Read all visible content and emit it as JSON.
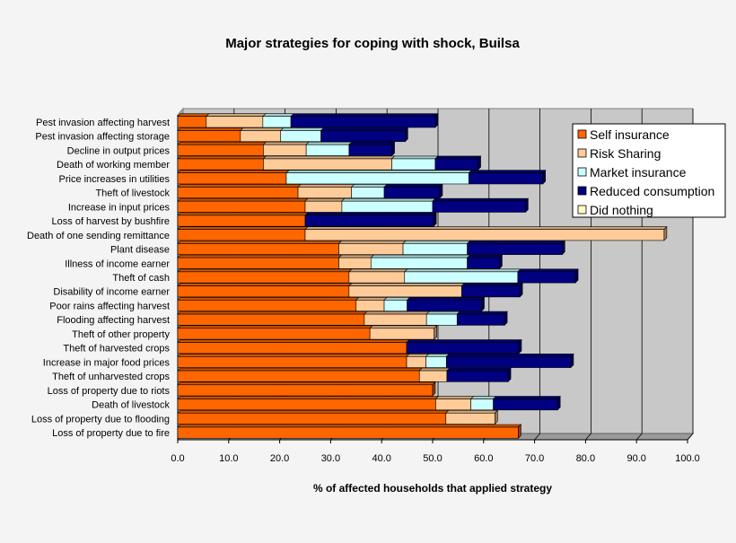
{
  "chart_data": {
    "type": "bar",
    "orientation": "horizontal",
    "stacked": true,
    "title": "Major strategies for coping with shock, Builsa",
    "xlabel": "% of affected households that applied strategy",
    "ylabel": "",
    "xlim": [
      0,
      100
    ],
    "xticks": [
      "0.0",
      "10.0",
      "20.0",
      "30.0",
      "40.0",
      "50.0",
      "60.0",
      "70.0",
      "80.0",
      "90.0",
      "100.0"
    ],
    "grid": true,
    "legend_position": "top-right",
    "categories": [
      "Pest invasion affecting harvest",
      "Pest invasion affecting storage",
      "Decline in output prices",
      "Death of working member",
      "Price increases in utilities",
      "Theft of livestock",
      "Increase in input prices",
      "Loss of harvest by bushfire",
      "Death of one sending remittance",
      "Plant disease",
      "Illness of income earner",
      "Theft of cash",
      "Disability of income earner",
      "Poor rains affecting harvest",
      "Flooding affecting harvest",
      "Theft of other property",
      "Theft of harvested crops",
      "Increase in major food prices",
      "Theft of unharvested crops",
      "Loss of property due to riots",
      "Death of livestock",
      "Loss of property due to flooding",
      "Loss of property due to fire"
    ],
    "series": [
      {
        "name": "Self insurance",
        "color": "#ff6600",
        "values": [
          5.6,
          12.3,
          16.8,
          16.8,
          21.3,
          23.6,
          25.0,
          25.0,
          25.0,
          31.6,
          31.6,
          33.6,
          33.6,
          35.0,
          36.6,
          37.7,
          44.9,
          44.9,
          47.4,
          50.0,
          50.6,
          52.6,
          66.8
        ]
      },
      {
        "name": "Risk Sharing",
        "color": "#ffcc99",
        "values": [
          11.1,
          7.9,
          8.4,
          25.2,
          0.0,
          10.5,
          7.2,
          0.0,
          70.4,
          12.6,
          6.3,
          10.9,
          22.1,
          5.5,
          12.2,
          12.6,
          0.0,
          3.8,
          5.4,
          0.0,
          6.9,
          9.6,
          0.0
        ]
      },
      {
        "name": "Market insurance",
        "color": "#ccffff",
        "values": [
          5.5,
          7.9,
          8.4,
          8.5,
          35.8,
          6.4,
          17.8,
          0.0,
          0.0,
          12.6,
          18.9,
          22.2,
          0.0,
          4.5,
          6.0,
          0.0,
          0.0,
          4.0,
          0.0,
          0.0,
          4.4,
          0.0,
          0.0
        ]
      },
      {
        "name": "Reduced consumption",
        "color": "#000080",
        "values": [
          28.3,
          16.5,
          8.4,
          8.4,
          14.5,
          10.9,
          18.2,
          25.2,
          0.0,
          18.6,
          6.3,
          11.3,
          11.4,
          14.6,
          9.3,
          0.0,
          22.0,
          24.4,
          12.0,
          0.0,
          12.6,
          0.0,
          0.0
        ]
      },
      {
        "name": "Did nothing",
        "color": "#ffffcc",
        "values": [
          0,
          0,
          0,
          0,
          0,
          0,
          0,
          0,
          0,
          0,
          0,
          0,
          0,
          0,
          0,
          0,
          0,
          0,
          0,
          0,
          0,
          0,
          0
        ]
      }
    ]
  }
}
